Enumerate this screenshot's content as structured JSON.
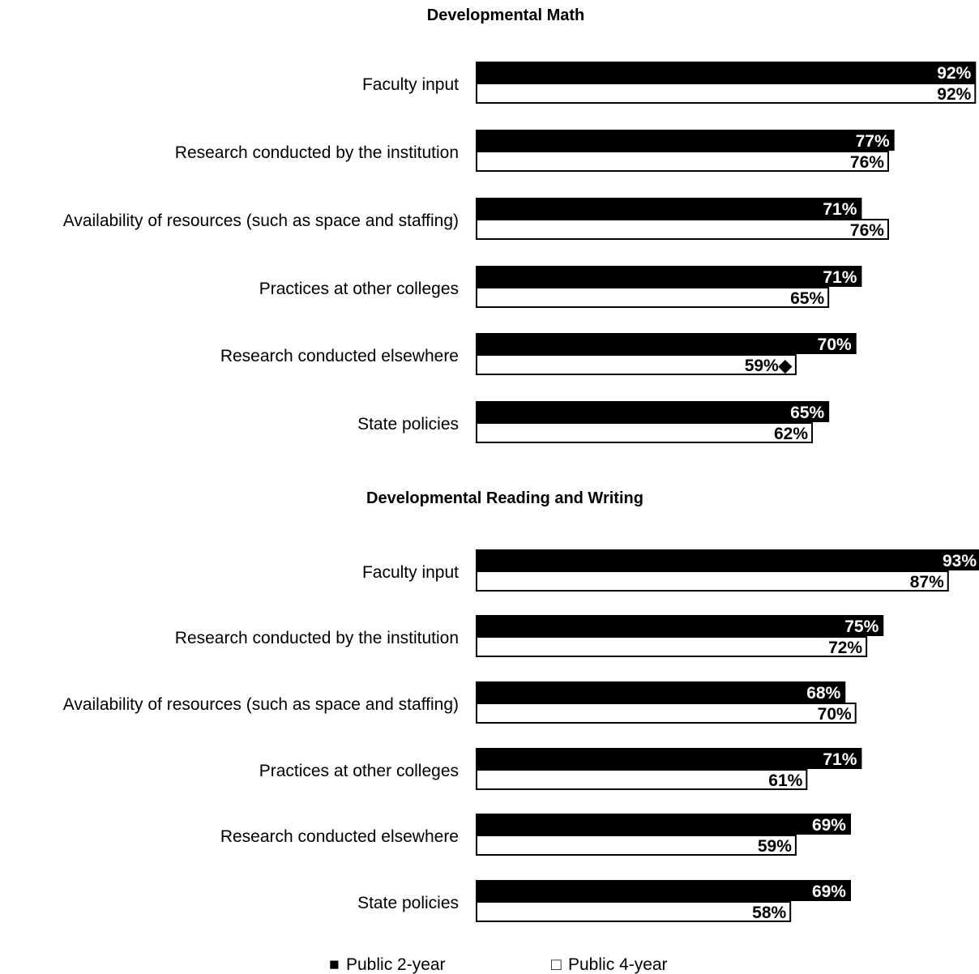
{
  "chart_data": [
    {
      "type": "bar",
      "orientation": "horizontal",
      "title": "Developmental Math",
      "categories": [
        "Faculty input",
        "Research conducted by the institution",
        "Availability of resources (such as space and staffing)",
        "Practices at other colleges",
        "Research conducted elsewhere",
        "State policies"
      ],
      "series": [
        {
          "name": "Public 2-year",
          "values": [
            92,
            77,
            71,
            71,
            70,
            65
          ],
          "labels": [
            "92%",
            "77%",
            "71%",
            "71%",
            "70%",
            "65%"
          ],
          "color": "#000000"
        },
        {
          "name": "Public 4-year",
          "values": [
            92,
            76,
            76,
            65,
            59,
            62
          ],
          "labels": [
            "92%",
            "76%",
            "76%",
            "65%",
            "59%◆",
            "62%"
          ],
          "color": "#ffffff"
        }
      ],
      "xlim": [
        0,
        92
      ]
    },
    {
      "type": "bar",
      "orientation": "horizontal",
      "title": "Developmental Reading and Writing",
      "categories": [
        "Faculty input",
        "Research conducted by the institution",
        "Availability of resources (such as space and staffing)",
        "Practices at other colleges",
        "Research conducted elsewhere",
        "State policies"
      ],
      "series": [
        {
          "name": "Public 2-year",
          "values": [
            93,
            75,
            68,
            71,
            69,
            69
          ],
          "labels": [
            "93%",
            "75%",
            "68%",
            "71%",
            "69%",
            "69%"
          ],
          "color": "#000000"
        },
        {
          "name": "Public 4-year",
          "values": [
            87,
            72,
            70,
            61,
            59,
            58
          ],
          "labels": [
            "87%",
            "72%",
            "70%",
            "61%",
            "59%",
            "58%"
          ],
          "color": "#ffffff"
        }
      ],
      "xlim": [
        0,
        92
      ]
    }
  ],
  "legend": {
    "position": "bottom",
    "items": [
      {
        "name": "Public 2-year",
        "marker": "■",
        "color": "#000000"
      },
      {
        "name": "Public 4-year",
        "marker": "□",
        "color": "#ffffff"
      }
    ]
  }
}
